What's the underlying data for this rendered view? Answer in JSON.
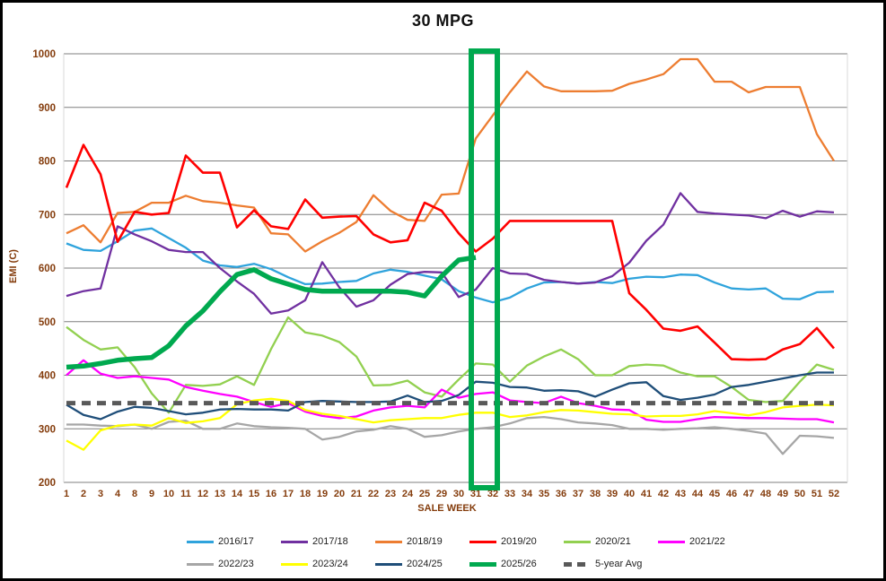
{
  "chart_data": {
    "type": "line",
    "title": "30 MPG",
    "xlabel": "SALE WEEK",
    "ylabel": "EMI (C)",
    "ylim": [
      200,
      1000
    ],
    "yticks": [
      200,
      300,
      400,
      500,
      600,
      700,
      800,
      900,
      1000
    ],
    "grid": "horizontal-only",
    "legend_position": "bottom",
    "tick_label_color": "#843C0C",
    "gridline_color": "#7F7F7F",
    "categories": [
      1,
      2,
      3,
      4,
      8,
      9,
      10,
      11,
      12,
      13,
      14,
      15,
      16,
      17,
      18,
      19,
      20,
      21,
      22,
      23,
      24,
      25,
      29,
      30,
      31,
      32,
      33,
      34,
      35,
      36,
      37,
      38,
      39,
      40,
      41,
      42,
      43,
      44,
      45,
      46,
      47,
      48,
      49,
      50,
      51,
      52
    ],
    "series": [
      {
        "name": "2016/17",
        "color": "#2FA3DC",
        "width": 2.3,
        "dash": null,
        "values": [
          646,
          634,
          632,
          650,
          670,
          674,
          656,
          638,
          614,
          605,
          602,
          608,
          598,
          583,
          570,
          571,
          574,
          576,
          590,
          597,
          593,
          586,
          579,
          557,
          545,
          536,
          545,
          562,
          573,
          574,
          571,
          574,
          572,
          580,
          584,
          583,
          588,
          587,
          573,
          562,
          560,
          562,
          543,
          542,
          555,
          556
        ]
      },
      {
        "name": "2017/18",
        "color": "#7030A0",
        "width": 2.3,
        "dash": null,
        "values": [
          548,
          557,
          562,
          678,
          663,
          650,
          634,
          630,
          630,
          600,
          575,
          552,
          515,
          521,
          540,
          611,
          564,
          528,
          540,
          569,
          589,
          593,
          592,
          546,
          560,
          600,
          590,
          589,
          578,
          574,
          571,
          573,
          585,
          610,
          651,
          681,
          740,
          705,
          702,
          700,
          698,
          693,
          707,
          696,
          706,
          704
        ]
      },
      {
        "name": "2018/19",
        "color": "#ED7D31",
        "width": 2.3,
        "dash": null,
        "values": [
          665,
          680,
          648,
          703,
          705,
          722,
          722,
          735,
          725,
          722,
          717,
          713,
          665,
          663,
          631,
          650,
          666,
          686,
          736,
          707,
          690,
          688,
          737,
          739,
          842,
          885,
          928,
          967,
          939,
          930,
          930,
          930,
          931,
          944,
          952,
          962,
          990,
          990,
          948,
          948,
          928,
          938,
          938,
          938,
          850,
          800
        ]
      },
      {
        "name": "2019/20",
        "color": "#FF0000",
        "width": 2.6,
        "dash": null,
        "values": [
          750,
          830,
          775,
          649,
          705,
          700,
          703,
          810,
          778,
          778,
          676,
          708,
          678,
          673,
          728,
          694,
          696,
          697,
          663,
          648,
          652,
          722,
          707,
          665,
          631,
          655,
          688,
          688,
          688,
          688,
          688,
          688,
          688,
          553,
          522,
          487,
          483,
          491,
          461,
          430,
          429,
          430,
          448,
          458,
          488,
          450
        ]
      },
      {
        "name": "2020/21",
        "color": "#92D050",
        "width": 2.3,
        "dash": null,
        "values": [
          490,
          466,
          448,
          452,
          415,
          366,
          330,
          382,
          380,
          383,
          398,
          382,
          449,
          508,
          480,
          474,
          462,
          435,
          381,
          382,
          390,
          368,
          360,
          392,
          422,
          420,
          388,
          418,
          435,
          448,
          430,
          400,
          400,
          417,
          420,
          418,
          405,
          398,
          398,
          378,
          354,
          350,
          352,
          388,
          420,
          410
        ]
      },
      {
        "name": "2021/22",
        "color": "#FF00FF",
        "width": 2.3,
        "dash": null,
        "values": [
          400,
          428,
          403,
          395,
          398,
          395,
          392,
          378,
          371,
          365,
          360,
          350,
          341,
          348,
          332,
          324,
          320,
          323,
          334,
          340,
          343,
          340,
          373,
          358,
          365,
          368,
          353,
          350,
          348,
          360,
          348,
          343,
          336,
          335,
          317,
          313,
          313,
          318,
          322,
          321,
          320,
          320,
          319,
          318,
          318,
          312
        ]
      },
      {
        "name": "2022/23",
        "color": "#A6A6A6",
        "width": 2.3,
        "dash": null,
        "values": [
          308,
          308,
          306,
          305,
          308,
          300,
          313,
          315,
          300,
          300,
          310,
          305,
          303,
          302,
          300,
          280,
          285,
          295,
          298,
          305,
          300,
          285,
          288,
          295,
          300,
          303,
          310,
          320,
          322,
          318,
          312,
          310,
          307,
          300,
          300,
          298,
          300,
          301,
          303,
          300,
          296,
          291,
          253,
          287,
          286,
          283
        ]
      },
      {
        "name": "2023/24",
        "color": "#FFFF00",
        "width": 2.3,
        "dash": null,
        "values": [
          278,
          261,
          297,
          306,
          308,
          306,
          320,
          311,
          314,
          320,
          346,
          353,
          356,
          352,
          335,
          328,
          324,
          318,
          312,
          316,
          318,
          320,
          320,
          326,
          330,
          330,
          322,
          325,
          331,
          335,
          334,
          331,
          328,
          327,
          323,
          324,
          324,
          327,
          333,
          329,
          325,
          331,
          340,
          343,
          345,
          344
        ]
      },
      {
        "name": "2024/25",
        "color": "#1F4E79",
        "width": 2.3,
        "dash": null,
        "values": [
          345,
          326,
          318,
          332,
          341,
          339,
          333,
          327,
          330,
          336,
          337,
          336,
          336,
          334,
          350,
          352,
          351,
          350,
          350,
          351,
          362,
          350,
          352,
          363,
          388,
          386,
          378,
          377,
          371,
          372,
          370,
          360,
          373,
          385,
          387,
          361,
          354,
          358,
          364,
          378,
          382,
          388,
          394,
          400,
          405,
          405
        ]
      },
      {
        "name": "2025/26",
        "color": "#00A94F",
        "width": 5.5,
        "dash": null,
        "values": [
          415,
          417,
          422,
          428,
          431,
          433,
          455,
          492,
          520,
          556,
          588,
          597,
          580,
          570,
          560,
          557,
          557,
          557,
          557,
          557,
          555,
          548,
          585,
          615,
          620,
          null,
          null,
          null,
          null,
          null,
          null,
          null,
          null,
          null,
          null,
          null,
          null,
          null,
          null,
          null,
          null,
          null,
          null,
          null,
          null,
          null
        ]
      },
      {
        "name": "5-year Avg",
        "color": "#595959",
        "width": 5,
        "dash": "10,7",
        "values": [
          348,
          348,
          348,
          348,
          348,
          348,
          348,
          348,
          348,
          348,
          348,
          348,
          348,
          348,
          348,
          348,
          348,
          348,
          348,
          348,
          348,
          348,
          348,
          348,
          348,
          348,
          348,
          348,
          348,
          348,
          348,
          348,
          348,
          348,
          348,
          348,
          348,
          348,
          348,
          348,
          348,
          348,
          348,
          348,
          348,
          348
        ]
      }
    ],
    "highlight_box": {
      "start_category": 31,
      "end_category": 32,
      "color": "#00A94F",
      "stroke_width": 6
    }
  }
}
